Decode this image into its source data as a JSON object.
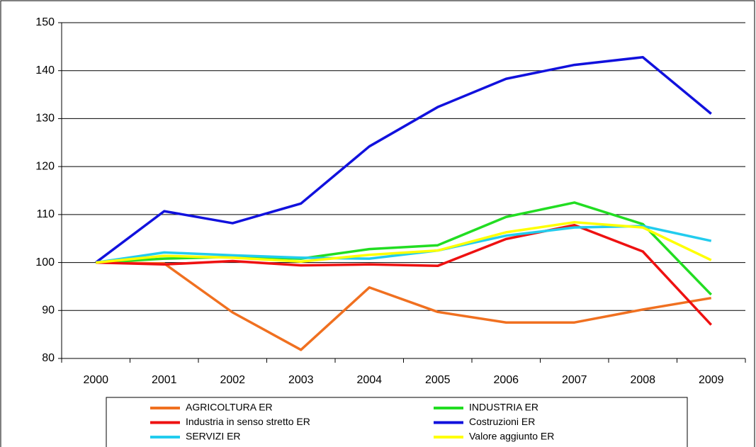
{
  "chart_data": {
    "type": "line",
    "categories": [
      "2000",
      "2001",
      "2002",
      "2003",
      "2004",
      "2005",
      "2006",
      "2007",
      "2008",
      "2009"
    ],
    "series": [
      {
        "name": "AGRICOLTURA ER",
        "color": "#f07020",
        "values": [
          100,
          99.8,
          89.6,
          81.8,
          94.8,
          89.7,
          87.5,
          87.5,
          90.2,
          92.6
        ]
      },
      {
        "name": "INDUSTRIA ER",
        "color": "#22dd22",
        "values": [
          100,
          100.8,
          101.2,
          100.8,
          102.8,
          103.6,
          109.5,
          112.5,
          108,
          93.3
        ]
      },
      {
        "name": "Industria in senso stretto ER",
        "color": "#ee1111",
        "values": [
          100,
          99.6,
          100.3,
          99.4,
          99.6,
          99.3,
          104.9,
          107.8,
          102.3,
          87
        ]
      },
      {
        "name": "Costruzioni ER",
        "color": "#1111dd",
        "values": [
          100,
          110.7,
          108.2,
          112.3,
          124.2,
          132.4,
          138.3,
          141.2,
          142.8,
          131
        ]
      },
      {
        "name": "SERVIZI ER",
        "color": "#22ccee",
        "values": [
          100,
          102.1,
          101.5,
          101,
          100.8,
          102.5,
          105.6,
          107.3,
          107.6,
          104.5
        ]
      },
      {
        "name": "Valore aggiunto ER",
        "color": "#ffff00",
        "values": [
          100,
          101.4,
          101,
          100.2,
          101.6,
          102.5,
          106.3,
          108.4,
          107.3,
          100.5
        ]
      }
    ],
    "ylim": [
      80,
      150
    ],
    "yticks": [
      80,
      90,
      100,
      110,
      120,
      130,
      140,
      150
    ],
    "grid": true
  }
}
